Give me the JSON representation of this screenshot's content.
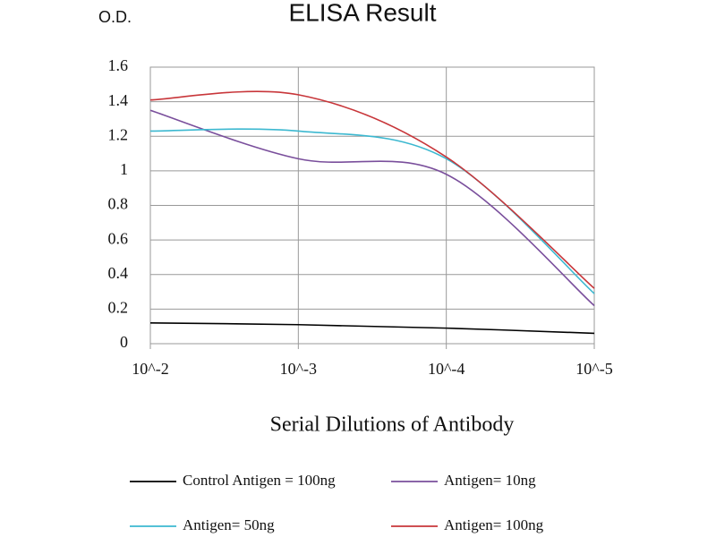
{
  "chart_data": {
    "type": "line",
    "title": "ELISA Result",
    "y_label": "O.D.",
    "x_label": "Serial Dilutions of Antibody",
    "categories": [
      "10^-2",
      "10^-3",
      "10^-4",
      "10^-5"
    ],
    "series": [
      {
        "name": "Control Antigen = 100ng",
        "color": "#000000",
        "values": [
          0.12,
          0.11,
          0.09,
          0.06
        ]
      },
      {
        "name": "Antigen= 10ng",
        "color": "#7a4f9c",
        "values": [
          1.35,
          1.07,
          0.98,
          0.22
        ]
      },
      {
        "name": "Antigen= 50ng",
        "color": "#3cb8d0",
        "values": [
          1.23,
          1.23,
          1.07,
          0.29
        ]
      },
      {
        "name": "Antigen= 100ng",
        "color": "#c8363a",
        "values": [
          1.41,
          1.44,
          1.08,
          0.32
        ]
      }
    ],
    "ylim": [
      0,
      1.6
    ],
    "yticks": [
      0,
      0.2,
      0.4,
      0.6,
      0.8,
      1,
      1.2,
      1.4,
      1.6
    ],
    "grid": true
  }
}
